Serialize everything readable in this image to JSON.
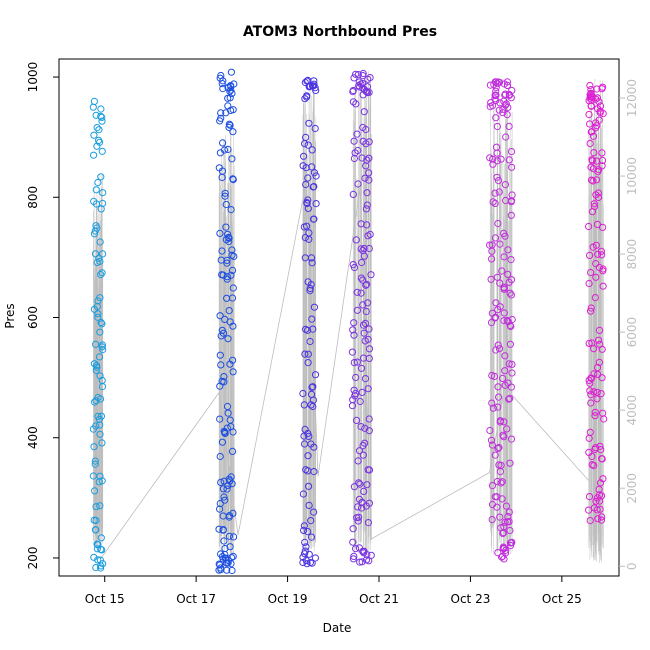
{
  "chart_data": {
    "type": "scatter",
    "title": "ATOM3 Northbound Pres",
    "xlabel": "Date",
    "ylabel": "Pres",
    "xlim": [
      "2015-10-14T00:00",
      "2015-10-26T06:00"
    ],
    "ylim": [
      170,
      1030
    ],
    "y2lim": [
      -250,
      13000
    ],
    "x_ticks": [
      {
        "label": "Oct 15",
        "date": "2015-10-15"
      },
      {
        "label": "Oct 17",
        "date": "2015-10-17"
      },
      {
        "label": "Oct 19",
        "date": "2015-10-19"
      },
      {
        "label": "Oct 21",
        "date": "2015-10-21"
      },
      {
        "label": "Oct 23",
        "date": "2015-10-23"
      },
      {
        "label": "Oct 25",
        "date": "2015-10-25"
      }
    ],
    "y_ticks": [
      200,
      400,
      600,
      800,
      1000
    ],
    "y2_ticks": [
      0,
      2000,
      4000,
      6000,
      8000,
      10000,
      12000
    ],
    "secondary_axis_color": "#bdbdbd",
    "line_color": "#bdbdbd",
    "grid": false,
    "legend": "none",
    "series": [
      {
        "color": "#1a9de0",
        "start": "2015-10-14T18:00",
        "end": "2015-10-14T23:00",
        "pmin": 180,
        "pmax": 965,
        "n": 95,
        "line_low": 430,
        "line_high": 10100
      },
      {
        "color": "#1d4fe0",
        "start": "2015-10-17T12:00",
        "end": "2015-10-17T20:00",
        "pmin": 178,
        "pmax": 1012,
        "n": 140,
        "line_low": 240,
        "line_high": 11300
      },
      {
        "color": "#4b35e0",
        "start": "2015-10-19T08:00",
        "end": "2015-10-19T15:00",
        "pmin": 188,
        "pmax": 998,
        "n": 100,
        "line_low": 380,
        "line_high": 12400
      },
      {
        "color": "#7b34e0",
        "start": "2015-10-20T10:00",
        "end": "2015-10-20T20:00",
        "pmin": 193,
        "pmax": 1007,
        "n": 140,
        "line_low": 330,
        "line_high": 12700
      },
      {
        "color": "#c02fdc",
        "start": "2015-10-23T10:00",
        "end": "2015-10-23T22:00",
        "pmin": 196,
        "pmax": 992,
        "n": 175,
        "line_low": 300,
        "line_high": 12200
      },
      {
        "color": "#dc1fd2",
        "start": "2015-10-25T14:00",
        "end": "2015-10-25T22:00",
        "pmin": 260,
        "pmax": 988,
        "n": 130,
        "line_low": 80,
        "line_high": 12500
      }
    ],
    "connector_line": [
      {
        "date": "2015-10-14T22:00",
        "value": 200
      },
      {
        "date": "2015-10-17T12:00",
        "value": 4450
      },
      {
        "date": "2015-10-17T22:00",
        "value": 800
      },
      {
        "date": "2015-10-19T10:00",
        "value": 9900
      },
      {
        "date": "2015-10-19T16:00",
        "value": 2300
      },
      {
        "date": "2015-10-20T14:00",
        "value": 9700
      },
      {
        "date": "2015-10-20T20:00",
        "value": 700
      },
      {
        "date": "2015-10-23T10:00",
        "value": 2400
      },
      {
        "date": "2015-10-23T18:00",
        "value": 4600
      },
      {
        "date": "2015-10-25T14:00",
        "value": 2200
      }
    ]
  }
}
